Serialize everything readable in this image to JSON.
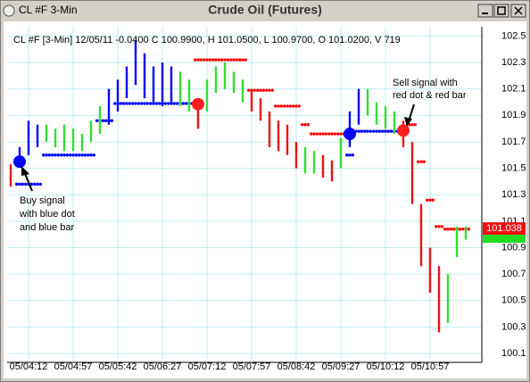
{
  "window": {
    "title": "CL #F 3-Min"
  },
  "chart_data": {
    "type": "price-bars",
    "title": "Crude Oil (Futures)",
    "subtitle": "CL #F [3-Min] 12/05/11  -0.0400 C 100.9900, H 101.0500, L 100.9700, O 101.0200, V 719",
    "x": [
      0,
      1,
      2,
      3,
      4,
      5,
      6,
      7,
      8,
      9,
      10,
      11,
      12,
      13,
      14,
      15,
      16,
      17,
      18,
      19,
      20,
      21,
      22,
      23,
      24,
      25,
      26,
      27,
      28,
      29,
      30,
      31,
      32,
      33,
      34,
      35,
      36,
      37,
      38,
      39,
      40,
      41,
      42,
      43,
      44,
      45,
      46,
      47,
      48,
      49,
      50,
      51
    ],
    "high": [
      101.53,
      101.66,
      101.86,
      101.83,
      101.83,
      101.8,
      101.83,
      101.8,
      101.76,
      101.86,
      101.97,
      102.1,
      102.17,
      102.27,
      102.47,
      102.37,
      102.27,
      102.3,
      102.27,
      102.23,
      102.17,
      102.03,
      102.17,
      102.27,
      102.3,
      102.23,
      102.17,
      102.1,
      102.03,
      101.93,
      101.86,
      101.83,
      101.7,
      101.66,
      101.63,
      101.6,
      101.56,
      101.73,
      101.93,
      102.1,
      102.1,
      102.0,
      101.97,
      101.93,
      101.86,
      101.7,
      101.23,
      100.9,
      100.76,
      100.7,
      101.06,
      101.06
    ],
    "low": [
      101.36,
      101.53,
      101.6,
      101.66,
      101.7,
      101.66,
      101.63,
      101.63,
      101.63,
      101.7,
      101.76,
      101.83,
      101.93,
      102.03,
      102.13,
      102.03,
      102.0,
      101.97,
      102.0,
      101.97,
      101.93,
      101.8,
      101.93,
      102.07,
      102.1,
      102.07,
      102.0,
      101.93,
      101.86,
      101.66,
      101.63,
      101.6,
      101.5,
      101.46,
      101.46,
      101.43,
      101.4,
      101.5,
      101.66,
      101.83,
      101.9,
      101.83,
      101.8,
      101.76,
      101.66,
      101.23,
      100.76,
      100.56,
      100.26,
      100.33,
      100.83,
      100.96
    ],
    "bar_colors": [
      "#ee1111",
      "#0000ff",
      "#0000ff",
      "#0000ff",
      "#33dd33",
      "#33dd33",
      "#33dd33",
      "#33dd33",
      "#33dd33",
      "#33dd33",
      "#33dd33",
      "#0000ff",
      "#0000ff",
      "#0000ff",
      "#0000ff",
      "#0000ff",
      "#0000ff",
      "#0000ff",
      "#0000ff",
      "#33dd33",
      "#33dd33",
      "#ee1111",
      "#33dd33",
      "#33dd33",
      "#33dd33",
      "#33dd33",
      "#33dd33",
      "#ee1111",
      "#ee1111",
      "#ee1111",
      "#ee1111",
      "#ee1111",
      "#ee1111",
      "#33dd33",
      "#33dd33",
      "#ee1111",
      "#ee1111",
      "#33dd33",
      "#0000ff",
      "#0000ff",
      "#33dd33",
      "#33dd33",
      "#33dd33",
      "#33dd33",
      "#ee1111",
      "#ee1111",
      "#ee1111",
      "#ee1111",
      "#ee1111",
      "#33dd33",
      "#33dd33",
      "#33dd33"
    ],
    "dot_series": [
      {
        "color": "#0000ff",
        "values": [
          null,
          101.38,
          101.38,
          101.38,
          101.6,
          101.6,
          101.6,
          101.6,
          101.6,
          101.6,
          101.86,
          101.86,
          101.99,
          101.99,
          101.99,
          101.99,
          101.99,
          101.99,
          101.99,
          101.99,
          101.99,
          null,
          null,
          null,
          null,
          null,
          null,
          null,
          null,
          null,
          null,
          null,
          null,
          null,
          null,
          null,
          null,
          null,
          101.6,
          101.78,
          101.78,
          101.78,
          101.78,
          101.78,
          101.78,
          null,
          null,
          null,
          null,
          null,
          null,
          null
        ]
      },
      {
        "color": "#ff0000",
        "values": [
          null,
          null,
          null,
          null,
          null,
          null,
          null,
          null,
          null,
          null,
          null,
          null,
          null,
          null,
          null,
          null,
          null,
          null,
          null,
          null,
          null,
          102.32,
          102.32,
          102.32,
          102.32,
          102.32,
          102.32,
          102.09,
          102.09,
          102.09,
          101.97,
          101.97,
          101.97,
          101.83,
          101.76,
          101.76,
          101.76,
          101.76,
          null,
          null,
          null,
          null,
          null,
          null,
          null,
          101.83,
          101.55,
          101.26,
          101.06,
          101.04,
          101.04,
          101.04
        ]
      }
    ],
    "signals": [
      {
        "x": 1,
        "value": 101.55,
        "color": "#0000ff"
      },
      {
        "x": 21,
        "value": 101.985,
        "color": "#ff2020"
      },
      {
        "x": 38,
        "value": 101.76,
        "color": "#0000ff"
      },
      {
        "x": 44,
        "value": 101.785,
        "color": "#ff2020"
      }
    ],
    "annotations": [
      {
        "lines": [
          "Buy signal",
          "with blue dot",
          "and blue bar"
        ]
      },
      {
        "lines": [
          "Sell signal with",
          "red dot & red bar"
        ]
      }
    ],
    "last_price": 101.038,
    "xlim": [
      -0.4,
      52.8
    ],
    "xticks": [
      {
        "value": 2,
        "label": "05/04:12"
      },
      {
        "value": 7,
        "label": "05/04:57"
      },
      {
        "value": 12,
        "label": "05/05:42"
      },
      {
        "value": 17,
        "label": "05/06:27"
      },
      {
        "value": 22,
        "label": "05/07:12"
      },
      {
        "value": 27,
        "label": "05/07:57"
      },
      {
        "value": 32,
        "label": "05/08:42"
      },
      {
        "value": 37,
        "label": "05/09:27"
      },
      {
        "value": 42,
        "label": "05/10:12"
      },
      {
        "value": 47,
        "label": "05/10:57"
      }
    ],
    "ylim": [
      100.06,
      102.57
    ],
    "yticks": [
      100.1,
      100.3,
      100.5,
      100.7,
      100.9,
      101.1,
      101.3,
      101.5,
      101.7,
      101.9,
      102.1,
      102.3,
      102.5
    ],
    "grid": true
  }
}
